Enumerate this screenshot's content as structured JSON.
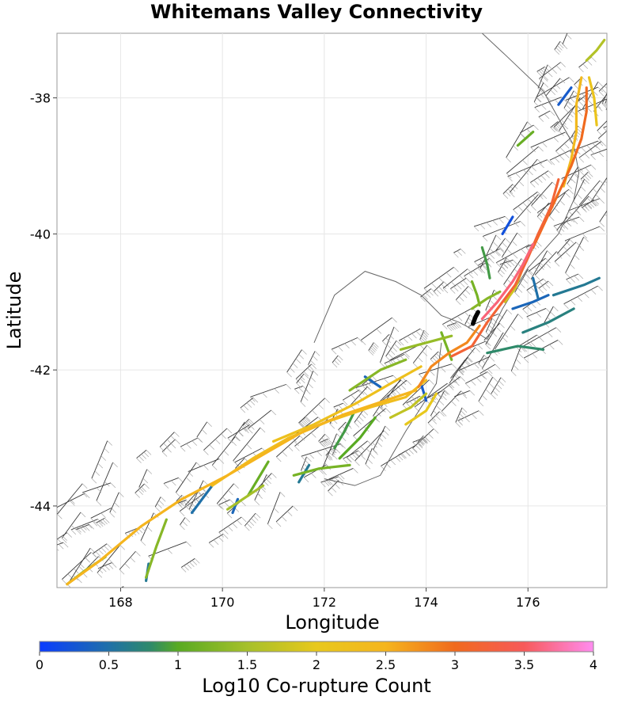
{
  "chart_data": {
    "type": "map",
    "title": "Whitemans Valley Connectivity",
    "xlabel": "Longitude",
    "ylabel": "Latitude",
    "xlim": [
      166.75,
      177.55
    ],
    "ylim": [
      -45.2,
      -37.05
    ],
    "x_ticks": [
      168,
      170,
      172,
      174,
      176
    ],
    "x_tick_labels": [
      "168",
      "170",
      "172",
      "174",
      "176"
    ],
    "y_ticks": [
      -38,
      -40,
      -42,
      -44
    ],
    "y_tick_labels": [
      "-38",
      "-40",
      "-42",
      "-44"
    ],
    "grid": true,
    "colorbar": {
      "label": "Log10 Co-rupture Count",
      "min": 0,
      "max": 4,
      "ticks": [
        0,
        0.5,
        1,
        1.5,
        2,
        2.5,
        3,
        3.5,
        4
      ],
      "tick_labels": [
        "0",
        "0.5",
        "1",
        "1.5",
        "2",
        "2.5",
        "3",
        "3.5",
        "4"
      ],
      "stops": [
        {
          "value": 0.0,
          "color": "#0a3cff"
        },
        {
          "value": 0.5,
          "color": "#1f70a8"
        },
        {
          "value": 0.8,
          "color": "#2e8a6a"
        },
        {
          "value": 1.0,
          "color": "#58aa22"
        },
        {
          "value": 1.5,
          "color": "#a6c02a"
        },
        {
          "value": 2.0,
          "color": "#e8c81c"
        },
        {
          "value": 2.5,
          "color": "#f5b51e"
        },
        {
          "value": 3.0,
          "color": "#f06a1e"
        },
        {
          "value": 3.5,
          "color": "#f75a5a"
        },
        {
          "value": 4.0,
          "color": "#ff8cf0"
        }
      ]
    },
    "source_fault": {
      "name": "Whitemans Valley",
      "color": "#000000",
      "points": [
        [
          174.92,
          -41.32
        ],
        [
          174.97,
          -41.22
        ],
        [
          175.02,
          -41.15
        ]
      ]
    },
    "faults": [
      {
        "value": 2.5,
        "points": [
          [
            166.95,
            -45.15
          ],
          [
            167.6,
            -44.8
          ],
          [
            168.4,
            -44.3
          ],
          [
            169.2,
            -43.9
          ],
          [
            170.1,
            -43.55
          ],
          [
            170.9,
            -43.2
          ],
          [
            171.6,
            -42.9
          ],
          [
            172.4,
            -42.65
          ],
          [
            173.2,
            -42.45
          ],
          [
            173.8,
            -42.3
          ]
        ]
      },
      {
        "value": 2.3,
        "points": [
          [
            169.8,
            -43.7
          ],
          [
            170.6,
            -43.3
          ],
          [
            171.3,
            -43.0
          ],
          [
            172.1,
            -42.75
          ],
          [
            172.9,
            -42.55
          ],
          [
            173.6,
            -42.4
          ],
          [
            174.0,
            -42.15
          ]
        ]
      },
      {
        "value": 2.2,
        "points": [
          [
            171.0,
            -43.05
          ],
          [
            171.8,
            -42.8
          ],
          [
            172.6,
            -42.5
          ],
          [
            173.3,
            -42.2
          ],
          [
            173.9,
            -41.95
          ]
        ]
      },
      {
        "value": 2.8,
        "points": [
          [
            173.85,
            -42.25
          ],
          [
            174.1,
            -41.95
          ],
          [
            174.45,
            -41.75
          ],
          [
            174.8,
            -41.6
          ],
          [
            175.05,
            -41.35
          ]
        ]
      },
      {
        "value": 3.2,
        "points": [
          [
            174.5,
            -41.8
          ],
          [
            174.9,
            -41.65
          ],
          [
            175.2,
            -41.3
          ],
          [
            175.45,
            -41.05
          ],
          [
            175.75,
            -40.75
          ],
          [
            176.0,
            -40.35
          ],
          [
            176.2,
            -40.0
          ],
          [
            176.45,
            -39.6
          ],
          [
            176.6,
            -39.2
          ]
        ]
      },
      {
        "value": 3.6,
        "points": [
          [
            175.1,
            -41.25
          ],
          [
            175.4,
            -41.0
          ],
          [
            175.7,
            -40.7
          ],
          [
            175.9,
            -40.45
          ],
          [
            176.1,
            -40.15
          ]
        ]
      },
      {
        "value": 3.0,
        "points": [
          [
            176.1,
            -40.2
          ],
          [
            176.35,
            -39.8
          ],
          [
            176.6,
            -39.4
          ],
          [
            176.85,
            -39.0
          ],
          [
            177.05,
            -38.6
          ],
          [
            177.15,
            -38.2
          ],
          [
            177.15,
            -37.85
          ]
        ]
      },
      {
        "value": 2.4,
        "points": [
          [
            176.7,
            -39.3
          ],
          [
            176.85,
            -38.9
          ],
          [
            176.95,
            -38.5
          ],
          [
            176.95,
            -38.1
          ],
          [
            177.05,
            -37.7
          ]
        ]
      },
      {
        "value": 2.1,
        "points": [
          [
            177.2,
            -37.7
          ],
          [
            177.3,
            -38.0
          ],
          [
            177.35,
            -38.4
          ]
        ]
      },
      {
        "value": 1.6,
        "points": [
          [
            177.15,
            -37.45
          ],
          [
            177.35,
            -37.3
          ],
          [
            177.5,
            -37.15
          ]
        ]
      },
      {
        "value": 0.3,
        "points": [
          [
            176.6,
            -38.1
          ],
          [
            176.85,
            -37.85
          ]
        ]
      },
      {
        "value": 1.1,
        "points": [
          [
            175.8,
            -38.7
          ],
          [
            176.1,
            -38.5
          ]
        ]
      },
      {
        "value": 0.2,
        "points": [
          [
            175.5,
            -40.0
          ],
          [
            175.7,
            -39.75
          ]
        ]
      },
      {
        "value": 0.9,
        "points": [
          [
            175.1,
            -40.2
          ],
          [
            175.2,
            -40.45
          ],
          [
            175.25,
            -40.65
          ]
        ]
      },
      {
        "value": 1.2,
        "points": [
          [
            174.9,
            -40.7
          ],
          [
            175.0,
            -40.9
          ],
          [
            175.05,
            -41.05
          ]
        ]
      },
      {
        "value": 1.8,
        "points": [
          [
            175.9,
            -40.5
          ],
          [
            175.75,
            -40.8
          ],
          [
            175.55,
            -41.0
          ]
        ]
      },
      {
        "value": 0.5,
        "points": [
          [
            176.1,
            -40.65
          ],
          [
            176.2,
            -40.95
          ]
        ]
      },
      {
        "value": 0.4,
        "points": [
          [
            175.7,
            -41.1
          ],
          [
            176.1,
            -41.0
          ],
          [
            176.4,
            -40.9
          ]
        ]
      },
      {
        "value": 0.7,
        "points": [
          [
            175.9,
            -41.45
          ],
          [
            176.4,
            -41.3
          ],
          [
            176.9,
            -41.1
          ]
        ]
      },
      {
        "value": 0.8,
        "points": [
          [
            175.2,
            -41.75
          ],
          [
            175.8,
            -41.65
          ],
          [
            176.3,
            -41.7
          ]
        ]
      },
      {
        "value": 0.6,
        "points": [
          [
            176.5,
            -40.9
          ],
          [
            177.1,
            -40.75
          ],
          [
            177.4,
            -40.65
          ]
        ]
      },
      {
        "value": 1.3,
        "points": [
          [
            172.5,
            -42.3
          ],
          [
            173.1,
            -42.0
          ],
          [
            173.6,
            -41.85
          ]
        ]
      },
      {
        "value": 1.4,
        "points": [
          [
            173.5,
            -41.7
          ],
          [
            174.0,
            -41.6
          ],
          [
            174.5,
            -41.5
          ]
        ]
      },
      {
        "value": 0.4,
        "points": [
          [
            172.8,
            -42.1
          ],
          [
            173.1,
            -42.25
          ]
        ]
      },
      {
        "value": 0.3,
        "points": [
          [
            173.9,
            -42.2
          ],
          [
            174.0,
            -42.45
          ]
        ]
      },
      {
        "value": 0.9,
        "points": [
          [
            172.6,
            -42.6
          ],
          [
            172.4,
            -42.9
          ],
          [
            172.2,
            -43.15
          ]
        ]
      },
      {
        "value": 1.0,
        "points": [
          [
            173.0,
            -42.7
          ],
          [
            172.7,
            -43.0
          ],
          [
            172.3,
            -43.3
          ]
        ]
      },
      {
        "value": 1.7,
        "points": [
          [
            174.0,
            -42.35
          ],
          [
            173.7,
            -42.55
          ],
          [
            173.3,
            -42.7
          ]
        ]
      },
      {
        "value": 1.2,
        "points": [
          [
            171.4,
            -43.55
          ],
          [
            171.9,
            -43.45
          ],
          [
            172.5,
            -43.4
          ]
        ]
      },
      {
        "value": 0.6,
        "points": [
          [
            171.7,
            -43.4
          ],
          [
            171.5,
            -43.65
          ]
        ]
      },
      {
        "value": 1.1,
        "points": [
          [
            170.9,
            -43.35
          ],
          [
            170.7,
            -43.6
          ],
          [
            170.5,
            -43.85
          ]
        ]
      },
      {
        "value": 1.5,
        "points": [
          [
            170.8,
            -43.7
          ],
          [
            170.4,
            -43.9
          ],
          [
            170.1,
            -44.05
          ]
        ]
      },
      {
        "value": 0.5,
        "points": [
          [
            169.8,
            -43.7
          ],
          [
            169.6,
            -43.9
          ],
          [
            169.4,
            -44.1
          ]
        ]
      },
      {
        "value": 0.4,
        "points": [
          [
            170.3,
            -43.9
          ],
          [
            170.2,
            -44.1
          ]
        ]
      },
      {
        "value": 1.3,
        "points": [
          [
            168.9,
            -44.2
          ],
          [
            168.7,
            -44.6
          ],
          [
            168.5,
            -45.05
          ]
        ]
      },
      {
        "value": 0.6,
        "points": [
          [
            168.55,
            -44.85
          ],
          [
            168.5,
            -45.1
          ]
        ]
      },
      {
        "value": 1.4,
        "points": [
          [
            166.95,
            -45.15
          ],
          [
            167.3,
            -44.95
          ],
          [
            167.7,
            -44.75
          ]
        ]
      },
      {
        "value": 1.2,
        "points": [
          [
            174.3,
            -41.45
          ],
          [
            174.4,
            -41.65
          ],
          [
            174.5,
            -41.85
          ]
        ]
      },
      {
        "value": 1.3,
        "points": [
          [
            174.9,
            -41.1
          ],
          [
            175.2,
            -40.95
          ],
          [
            175.45,
            -40.85
          ]
        ]
      },
      {
        "value": 2.0,
        "points": [
          [
            173.6,
            -42.8
          ],
          [
            174.0,
            -42.6
          ],
          [
            174.2,
            -42.35
          ]
        ]
      }
    ]
  }
}
